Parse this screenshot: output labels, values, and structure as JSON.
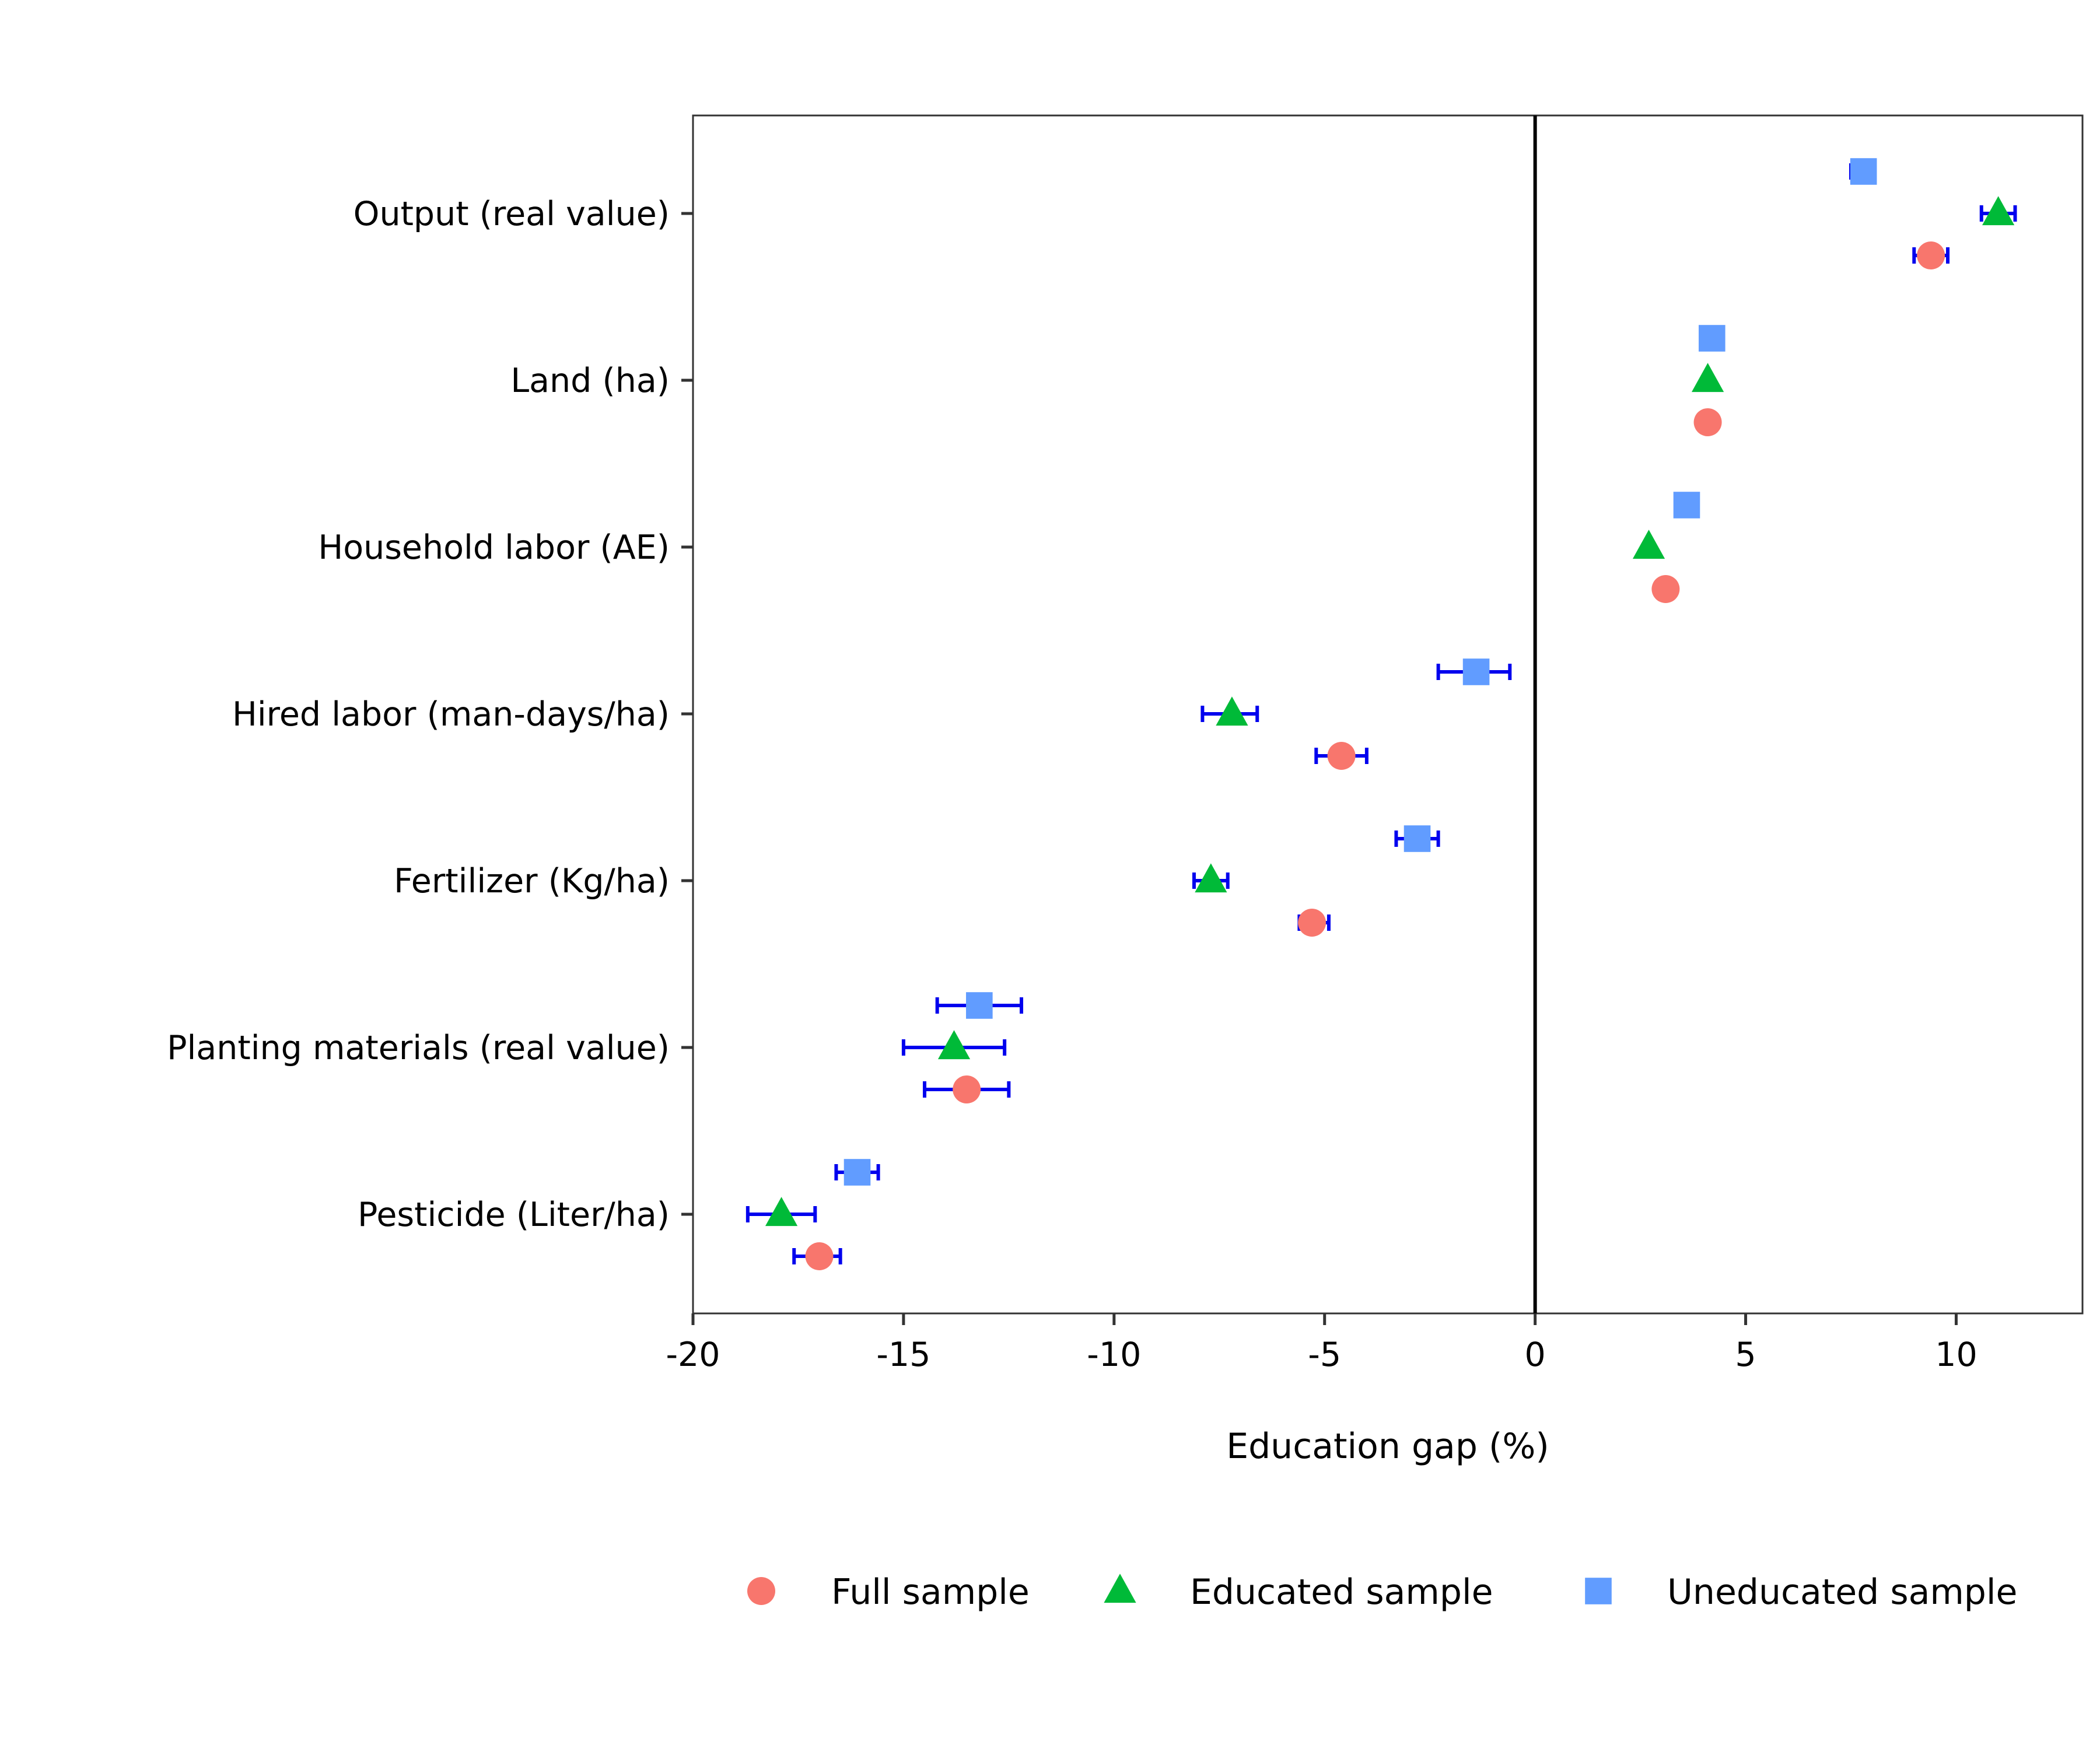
{
  "chart_data": {
    "type": "scatter",
    "xlabel": "Education gap (%)",
    "xlim": [
      -20,
      13
    ],
    "x_ticks": [
      -20,
      -15,
      -10,
      -5,
      0,
      5,
      10
    ],
    "x_tick_labels": [
      "-20",
      "-15",
      "-10",
      "-5",
      "0",
      "5",
      "10"
    ],
    "reference_line_x": 0,
    "grid": false,
    "legend_position": "bottom",
    "categories": [
      "Output (real value)",
      "Land (ha)",
      "Household labor (AE)",
      "Hired labor (man-days/ha)",
      "Fertilizer (Kg/ha)",
      "Planting materials (real value)",
      "Pesticide (Liter/ha)"
    ],
    "series": [
      {
        "name": "Full sample",
        "marker": "circle",
        "color": "#F8766D",
        "values": [
          9.4,
          4.1,
          3.1,
          -4.6,
          -5.3,
          -13.5,
          -17.0
        ],
        "ci": [
          [
            9.0,
            9.8
          ],
          null,
          null,
          [
            -5.2,
            -4.0
          ],
          [
            -5.6,
            -4.9
          ],
          [
            -14.5,
            -12.5
          ],
          [
            -17.6,
            -16.5
          ]
        ]
      },
      {
        "name": "Educated sample",
        "marker": "triangle",
        "color": "#00BA38",
        "values": [
          11.0,
          4.1,
          2.7,
          -7.2,
          -7.7,
          -13.8,
          -17.9
        ],
        "ci": [
          [
            10.6,
            11.4
          ],
          null,
          null,
          [
            -7.9,
            -6.6
          ],
          [
            -8.1,
            -7.3
          ],
          [
            -15.0,
            -12.6
          ],
          [
            -18.7,
            -17.1
          ]
        ]
      },
      {
        "name": "Uneducated sample",
        "marker": "square",
        "color": "#619CFF",
        "values": [
          7.8,
          4.2,
          3.6,
          -1.4,
          -2.8,
          -13.2,
          -16.1
        ],
        "ci": [
          [
            7.5,
            8.0
          ],
          null,
          null,
          [
            -2.3,
            -0.6
          ],
          [
            -3.3,
            -2.3
          ],
          [
            -14.2,
            -12.2
          ],
          [
            -16.6,
            -15.6
          ]
        ]
      }
    ],
    "error_bar_color": "#0000EE",
    "zero_line_color": "#000000",
    "axis_color": "#333333"
  }
}
